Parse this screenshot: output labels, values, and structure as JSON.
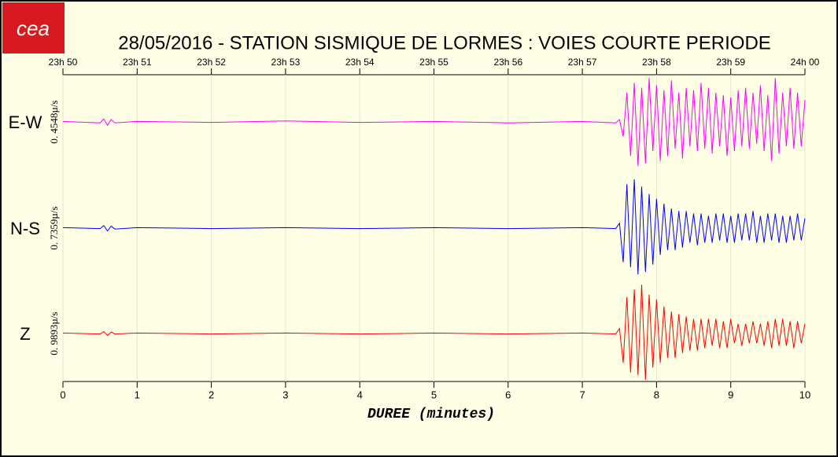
{
  "logo": "cea",
  "chart_data": {
    "type": "seismogram",
    "title": "28/05/2016  -  STATION SISMIQUE DE LORMES : VOIES COURTE PERIODE",
    "xlabel": "DUREE (minutes)",
    "xlim": [
      0,
      10
    ],
    "xticks": [
      0,
      1,
      2,
      3,
      4,
      5,
      6,
      7,
      8,
      9,
      10
    ],
    "x2ticks": [
      {
        "value": 0,
        "label": "23h 50"
      },
      {
        "value": 1,
        "label": "23h 51"
      },
      {
        "value": 2,
        "label": "23h 52"
      },
      {
        "value": 3,
        "label": "23h 53"
      },
      {
        "value": 4,
        "label": "23h 54"
      },
      {
        "value": 5,
        "label": "23h 55"
      },
      {
        "value": 6,
        "label": "23h 56"
      },
      {
        "value": 7,
        "label": "23h 57"
      },
      {
        "value": 8,
        "label": "23h 58"
      },
      {
        "value": 9,
        "label": "23h 59"
      },
      {
        "value": 10,
        "label": "24h 00"
      }
    ],
    "ylim": [
      -1,
      1
    ],
    "grid": true,
    "x": [
      0,
      0.5,
      0.55,
      0.6,
      0.65,
      0.7,
      1,
      2,
      3,
      4,
      5,
      6,
      7,
      7.45,
      7.5,
      7.55,
      7.6,
      7.65,
      7.7,
      7.75,
      7.8,
      7.85,
      7.9,
      7.95,
      8,
      8.05,
      8.1,
      8.15,
      8.2,
      8.25,
      8.3,
      8.35,
      8.4,
      8.45,
      8.5,
      8.55,
      8.6,
      8.65,
      8.7,
      8.75,
      8.8,
      8.85,
      8.9,
      8.95,
      9,
      9.05,
      9.1,
      9.15,
      9.2,
      9.25,
      9.3,
      9.35,
      9.4,
      9.45,
      9.5,
      9.55,
      9.6,
      9.65,
      9.7,
      9.75,
      9.8,
      9.85,
      9.9,
      9.95,
      10
    ],
    "series": [
      {
        "name": "E-W",
        "scale_label": "0. 4548µ/s",
        "color": "#ff00ff",
        "values": [
          0.01,
          -0.02,
          0.06,
          -0.07,
          0.05,
          -0.02,
          0.01,
          -0.01,
          0.02,
          -0.01,
          0.01,
          -0.02,
          0.01,
          -0.02,
          0.05,
          -0.3,
          0.6,
          -0.7,
          0.8,
          -0.9,
          0.7,
          -0.85,
          0.9,
          -0.6,
          0.75,
          -0.8,
          0.65,
          -0.7,
          0.85,
          -0.55,
          0.6,
          -0.75,
          0.7,
          -0.5,
          0.65,
          -0.6,
          0.8,
          -0.55,
          0.7,
          -0.65,
          0.6,
          -0.5,
          0.55,
          -0.7,
          0.5,
          -0.6,
          0.65,
          -0.5,
          0.7,
          -0.55,
          0.6,
          -0.45,
          0.75,
          -0.6,
          0.55,
          -0.8,
          0.9,
          -0.65,
          0.6,
          -0.5,
          0.7,
          -0.55,
          0.6,
          -0.5,
          0.45
        ]
      },
      {
        "name": "N-S",
        "scale_label": "0. 7359µ/s",
        "color": "#0000ff",
        "values": [
          0.01,
          -0.01,
          0.05,
          -0.06,
          0.04,
          -0.02,
          0.01,
          -0.01,
          0.01,
          -0.01,
          0.01,
          -0.01,
          0.01,
          -0.01,
          0.1,
          -0.7,
          0.9,
          -0.8,
          1.0,
          -0.95,
          0.85,
          -0.9,
          0.7,
          -0.75,
          0.6,
          -0.55,
          0.5,
          -0.45,
          0.4,
          -0.45,
          0.35,
          -0.4,
          0.35,
          -0.3,
          0.3,
          -0.35,
          0.3,
          -0.3,
          0.25,
          -0.3,
          0.3,
          -0.25,
          0.3,
          -0.3,
          0.25,
          -0.3,
          0.3,
          -0.25,
          0.3,
          -0.25,
          0.35,
          -0.3,
          0.25,
          -0.3,
          0.3,
          -0.25,
          0.3,
          -0.3,
          0.25,
          -0.3,
          0.25,
          -0.25,
          0.3,
          -0.25,
          0.2
        ]
      },
      {
        "name": "Z",
        "scale_label": "0. 9893µ/s",
        "color": "#ff0000",
        "values": [
          0.01,
          -0.01,
          0.04,
          -0.04,
          0.03,
          -0.01,
          0.01,
          -0.01,
          0.01,
          -0.01,
          0.01,
          -0.01,
          0.01,
          -0.01,
          0.1,
          -0.6,
          0.75,
          -0.8,
          0.9,
          -0.85,
          1.0,
          -0.95,
          0.8,
          -0.7,
          0.7,
          -0.6,
          0.55,
          -0.5,
          0.45,
          -0.5,
          0.4,
          -0.4,
          0.35,
          -0.35,
          0.3,
          -0.35,
          0.3,
          -0.3,
          0.3,
          -0.25,
          0.3,
          -0.3,
          0.25,
          -0.3,
          0.3,
          -0.2,
          0.2,
          -0.25,
          0.2,
          -0.2,
          0.25,
          -0.2,
          0.2,
          -0.25,
          0.25,
          -0.3,
          0.3,
          -0.25,
          0.3,
          -0.25,
          0.25,
          -0.3,
          0.25,
          -0.2,
          0.2
        ]
      }
    ]
  }
}
